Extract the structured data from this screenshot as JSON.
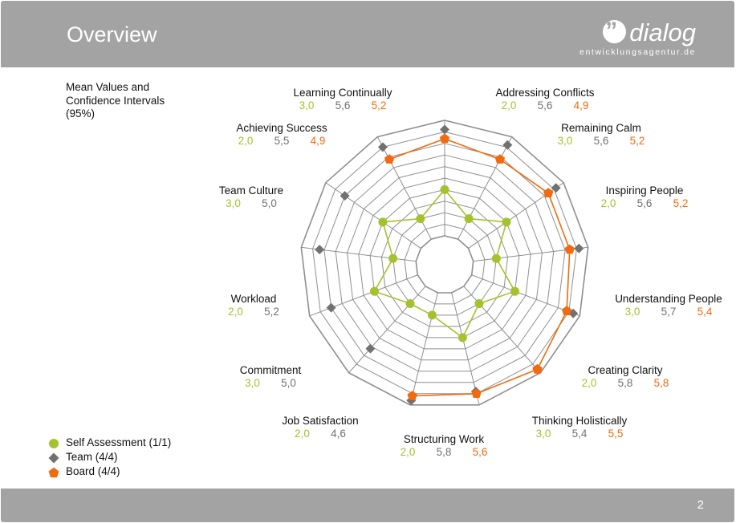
{
  "header": {
    "title": "Overview",
    "logo_text": "dialog",
    "logo_tagline": "entwicklungsagentur.de"
  },
  "note": {
    "line1": "Mean Values and",
    "line2": "Confidence Intervals",
    "line3": "(95%)"
  },
  "legend": [
    {
      "label": "Self Assessment (1/1)",
      "color": "#a4c22e",
      "shape": "circle"
    },
    {
      "label": "Team (4/4)",
      "color": "#717171",
      "shape": "diamond"
    },
    {
      "label": "Board (4/4)",
      "color": "#f26a0f",
      "shape": "pentagon"
    }
  ],
  "footer": {
    "page_number": "2"
  },
  "chart_data": {
    "type": "radar",
    "range": [
      1,
      6
    ],
    "rings": 10,
    "colors": {
      "self": "#a4c22e",
      "team": "#717171",
      "board": "#f26a0f",
      "grid": "#8f8f8f"
    },
    "axes": [
      {
        "label": "Learning Continually",
        "self": "3,0",
        "team": "5,6",
        "board": "5,2"
      },
      {
        "label": "Addressing Conflicts",
        "self": "2,0",
        "team": "5,6",
        "board": "4,9"
      },
      {
        "label": "Remaining Calm",
        "self": "3,0",
        "team": "5,6",
        "board": "5,2"
      },
      {
        "label": "Inspiring People",
        "self": "2,0",
        "team": "5,6",
        "board": "5,2"
      },
      {
        "label": "Understanding People",
        "self": "3,0",
        "team": "5,7",
        "board": "5,4"
      },
      {
        "label": "Creating Clarity",
        "self": "2,0",
        "team": "5,8",
        "board": "5,8"
      },
      {
        "label": "Thinking Holistically",
        "self": "3,0",
        "team": "5,4",
        "board": "5,5"
      },
      {
        "label": "Structuring Work",
        "self": "2,0",
        "team": "5,8",
        "board": "5,6"
      },
      {
        "label": "Job Satisfaction",
        "self": "2,0",
        "team": "4,6",
        "board": null
      },
      {
        "label": "Commitment",
        "self": "3,0",
        "team": "5,0",
        "board": null
      },
      {
        "label": "Workload",
        "self": "2,0",
        "team": "5,2",
        "board": null
      },
      {
        "label": "Team Culture",
        "self": "3,0",
        "team": "5,0",
        "board": null
      },
      {
        "label": "Achieving Success",
        "self": "2,0",
        "team": "5,5",
        "board": "4,9"
      }
    ]
  }
}
